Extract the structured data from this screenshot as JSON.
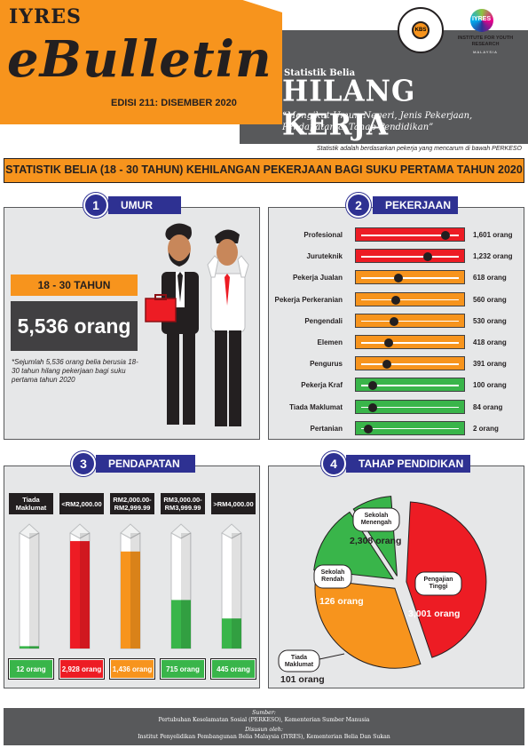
{
  "header": {
    "brand_small": "IYRES",
    "brand_title": "eBulletin",
    "edition": "EDISI 211: DISEMBER 2020",
    "kicker": "Statistik Belia",
    "headline": "HILANG KERJA",
    "subtitle": "“Mengikut Umur, Negeri, Jenis Pekerjaan, Pendapatan & Tahap Pendidikan”",
    "note": "Statistik adalah berdasarkan pekerja yang mencarum di bawah PERKESO",
    "logo_kbs_text": "KBS",
    "logo_iyres_text": "IYRES",
    "logo_iyres_caption": "INSTITUTE FOR YOUTH RESEARCH",
    "logo_iyres_country": "MALAYSIA"
  },
  "main_title": "STATISTIK BELIA (18 - 30 TAHUN) KEHILANGAN PEKERJAAN BAGI SUKU PERTAMA TAHUN 2020",
  "umur": {
    "number": "1",
    "title": "UMUR",
    "range": "18 - 30 TAHUN",
    "count": "5,536 orang",
    "note": "*Sejumlah 5,536 orang belia berusia 18-30 tahun hilang pekerjaan bagi suku pertama tahun 2020"
  },
  "pekerjaan": {
    "number": "2",
    "title": "PEKERJAAN",
    "rows": [
      {
        "label": "Profesional",
        "value": "1,601 orang",
        "n": 1601,
        "color": "#ed1c24"
      },
      {
        "label": "Juruteknik",
        "value": "1,232 orang",
        "n": 1232,
        "color": "#ed1c24"
      },
      {
        "label": "Pekerja Jualan",
        "value": "618 orang",
        "n": 618,
        "color": "#f7941d"
      },
      {
        "label": "Pekerja Perkeranian",
        "value": "560 orang",
        "n": 560,
        "color": "#f7941d"
      },
      {
        "label": "Pengendali",
        "value": "530 orang",
        "n": 530,
        "color": "#f7941d"
      },
      {
        "label": "Elemen",
        "value": "418 orang",
        "n": 418,
        "color": "#f7941d"
      },
      {
        "label": "Pengurus",
        "value": "391 orang",
        "n": 391,
        "color": "#f7941d"
      },
      {
        "label": "Pekerja Kraf",
        "value": "100 orang",
        "n": 100,
        "color": "#39b54a"
      },
      {
        "label": "Tiada Maklumat",
        "value": "84 orang",
        "n": 84,
        "color": "#39b54a"
      },
      {
        "label": "Pertanian",
        "value": "2 orang",
        "n": 2,
        "color": "#39b54a"
      }
    ]
  },
  "pendapatan": {
    "number": "3",
    "title": "PENDAPATAN",
    "items": [
      {
        "label": "Tiada Maklumat",
        "value": "12 orang",
        "fill": 0.02,
        "color": "#39b54a"
      },
      {
        "label": "<RM2,000.00",
        "value": "2,928 orang",
        "fill": 0.93,
        "color": "#ed1c24"
      },
      {
        "label": "RM2,000.00- RM2,999.99",
        "value": "1,436 orang",
        "fill": 0.84,
        "color": "#f7941d"
      },
      {
        "label": "RM3,000.00- RM3,999.99",
        "value": "715 orang",
        "fill": 0.42,
        "color": "#39b54a"
      },
      {
        "label": ">RM4,000.00",
        "value": "445 orang",
        "fill": 0.26,
        "color": "#39b54a"
      }
    ]
  },
  "pendidikan": {
    "number": "4",
    "title": "TAHAP PENDIDIKAN",
    "segments": [
      {
        "label": "Pengajian Tinggi",
        "value": "3,001 orang",
        "n": 3001,
        "color": "#ed1c24"
      },
      {
        "label": "Sekolah Menengah",
        "value": "2,308 orang",
        "n": 2308,
        "color": "#f7941d"
      },
      {
        "label": "Sekolah Rendah",
        "value": "126 orang",
        "n": 126,
        "color": "#39b54a"
      },
      {
        "label": "Tiada Maklumat",
        "value": "101 orang",
        "n": 101,
        "color": "#39b54a"
      }
    ]
  },
  "footer": {
    "source_label": "Sumber:",
    "source": "Pertubuhan Keselamatan Sosial (PERKESO), Kementerian Sumber Manusia",
    "prepared_label": "Disusun oleh:",
    "prepared": "Institut Penyelidikan Pembangunan Belia Malaysia (IYRES), Kementerian Belia Dan Sukan"
  }
}
